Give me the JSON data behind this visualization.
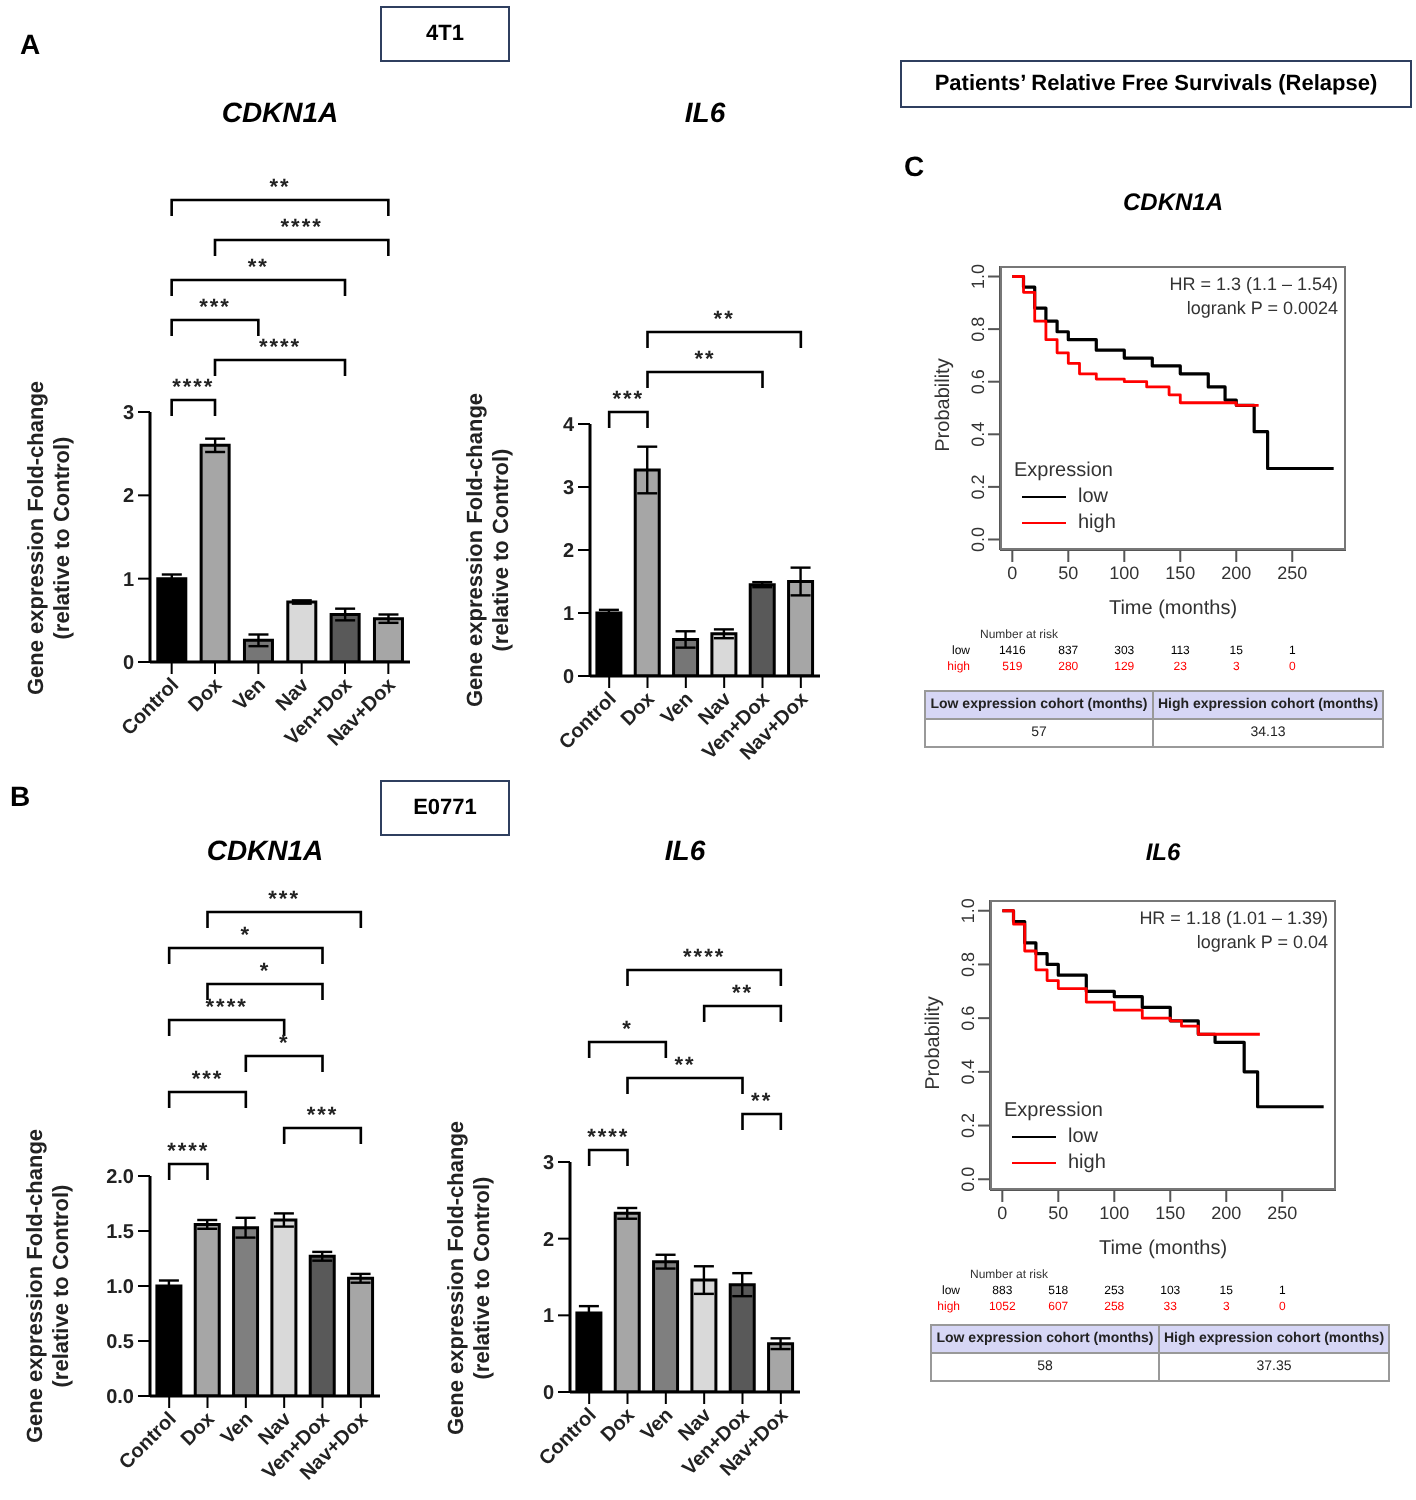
{
  "chart_data": [
    {
      "type": "bar",
      "title": "CDKN1A",
      "ylabel": "Gene expression Fold-change (relative to Control)",
      "categories": [
        "Control",
        "Dox",
        "Ven",
        "Nav",
        "Ven+Dox",
        "Nav+Dox"
      ],
      "values": [
        1.0,
        2.6,
        0.26,
        0.72,
        0.57,
        0.52
      ],
      "errors": [
        0.05,
        0.08,
        0.07,
        0.02,
        0.07,
        0.05
      ],
      "colors": [
        "#000000",
        "#a6a6a6",
        "#767676",
        "#d9d9d9",
        "#595959",
        "#a6a6a6"
      ],
      "ylim": [
        0,
        3
      ],
      "yticks": [
        0,
        1,
        2,
        3
      ],
      "annotations": [
        "A",
        "4T1",
        "**",
        "****",
        "**",
        "***",
        "****",
        "****"
      ]
    },
    {
      "type": "bar",
      "title": "IL6",
      "ylabel": "Gene expression Fold-change (relative to Control)",
      "categories": [
        "Control",
        "Dox",
        "Ven",
        "Nav",
        "Ven+Dox",
        "Nav+Dox"
      ],
      "values": [
        1.0,
        3.27,
        0.58,
        0.67,
        1.45,
        1.5
      ],
      "errors": [
        0.05,
        0.37,
        0.13,
        0.07,
        0.04,
        0.22
      ],
      "colors": [
        "#000000",
        "#a6a6a6",
        "#767676",
        "#d9d9d9",
        "#595959",
        "#a6a6a6"
      ],
      "ylim": [
        0,
        4
      ],
      "yticks": [
        0,
        1,
        2,
        3,
        4
      ],
      "annotations": [
        "**",
        "***",
        "**"
      ]
    },
    {
      "type": "bar",
      "title": "CDKN1A",
      "ylabel": "Gene expression Fold-change (relative to Control)",
      "categories": [
        "Control",
        "Dox",
        "Ven",
        "Nav",
        "Ven+Dox",
        "Nav+Dox"
      ],
      "values": [
        1.0,
        1.56,
        1.53,
        1.6,
        1.27,
        1.07
      ],
      "errors": [
        0.05,
        0.04,
        0.09,
        0.06,
        0.04,
        0.04
      ],
      "colors": [
        "#000000",
        "#a6a6a6",
        "#7f7f7f",
        "#d9d9d9",
        "#595959",
        "#a6a6a6"
      ],
      "ylim": [
        0,
        2
      ],
      "yticks": [
        {
          "value": 0,
          "label": "0.0"
        },
        {
          "value": 0.5,
          "label": "0.5"
        },
        {
          "value": 1,
          "label": "1.0"
        },
        {
          "value": 1.5,
          "label": "1.5"
        },
        {
          "value": 2,
          "label": "2.0"
        }
      ],
      "annotations": [
        "B",
        "E0771",
        "***",
        "*",
        "*",
        "****",
        "***",
        "*",
        "****",
        "***"
      ]
    },
    {
      "type": "bar",
      "title": "IL6",
      "ylabel": "Gene expression Fold-change (relative to Control)",
      "categories": [
        "Control",
        "Dox",
        "Ven",
        "Nav",
        "Ven+Dox",
        "Nav+Dox"
      ],
      "values": [
        1.03,
        2.33,
        1.7,
        1.46,
        1.4,
        0.63
      ],
      "errors": [
        0.09,
        0.07,
        0.09,
        0.18,
        0.15,
        0.07
      ],
      "colors": [
        "#000000",
        "#a6a6a6",
        "#7f7f7f",
        "#d9d9d9",
        "#595959",
        "#a6a6a6"
      ],
      "ylim": [
        0,
        3
      ],
      "yticks": [
        0,
        1,
        2,
        3
      ],
      "annotations": [
        "****",
        "*",
        "**",
        "****",
        "**",
        "**"
      ]
    },
    {
      "type": "step",
      "title": "CDKN1A",
      "xlabel": "Time (months)",
      "ylabel": "Probability",
      "xlim": [
        -11,
        298
      ],
      "ylim": [
        -0.04,
        1.04
      ],
      "xticks": [
        0,
        50,
        100,
        150,
        200,
        250
      ],
      "yticks": [
        {
          "value": 0,
          "label": "0.0"
        },
        {
          "value": 0.2,
          "label": "0.2"
        },
        {
          "value": 0.4,
          "label": "0.4"
        },
        {
          "value": 0.6,
          "label": "0.6"
        },
        {
          "value": 0.8,
          "label": "0.8"
        },
        {
          "value": 1,
          "label": "1.0"
        }
      ],
      "legend": "bottom left",
      "legend_title": "Expression",
      "series": [
        {
          "name": "low",
          "color": "#000000",
          "x": [
            0,
            10,
            20,
            30,
            40,
            50,
            75,
            100,
            125,
            150,
            175,
            190,
            200,
            216,
            228,
            287
          ],
          "values": [
            1.0,
            0.96,
            0.88,
            0.83,
            0.79,
            0.76,
            0.72,
            0.69,
            0.66,
            0.63,
            0.58,
            0.53,
            0.51,
            0.41,
            0.27,
            0.27
          ]
        },
        {
          "name": "high",
          "color": "#ff0000",
          "x": [
            0,
            10,
            20,
            30,
            40,
            50,
            60,
            75,
            100,
            120,
            140,
            150,
            175,
            200,
            220
          ],
          "values": [
            1.0,
            0.94,
            0.83,
            0.76,
            0.71,
            0.67,
            0.63,
            0.61,
            0.6,
            0.58,
            0.55,
            0.52,
            0.52,
            0.51,
            0.51
          ]
        }
      ],
      "annotations": [
        "Patients’ Relative Free Survivals (Relapse)",
        "C",
        "HR = 1.3 (1.1 – 1.54)",
        "logrank P = 0.0024",
        "Number at risk",
        "low",
        "1416",
        "837",
        "303",
        "113",
        "15",
        "1",
        "high",
        "519",
        "280",
        "129",
        "23",
        "3",
        "0",
        "Low expression cohort (months)",
        "High expression cohort (months)",
        "57",
        "34.13"
      ]
    },
    {
      "type": "step",
      "title": "IL6",
      "xlabel": "Time (months)",
      "ylabel": "Probability",
      "xlim": [
        -11,
        298
      ],
      "ylim": [
        -0.04,
        1.04
      ],
      "xticks": [
        0,
        50,
        100,
        150,
        200,
        250
      ],
      "yticks": [
        {
          "value": 0,
          "label": "0.0"
        },
        {
          "value": 0.2,
          "label": "0.2"
        },
        {
          "value": 0.4,
          "label": "0.4"
        },
        {
          "value": 0.6,
          "label": "0.6"
        },
        {
          "value": 0.8,
          "label": "0.8"
        },
        {
          "value": 1,
          "label": "1.0"
        }
      ],
      "legend": "bottom left",
      "legend_title": "Expression",
      "series": [
        {
          "name": "low",
          "color": "#000000",
          "x": [
            0,
            10,
            20,
            30,
            40,
            50,
            75,
            100,
            125,
            150,
            175,
            190,
            216,
            228,
            287
          ],
          "values": [
            1.0,
            0.96,
            0.88,
            0.84,
            0.8,
            0.76,
            0.7,
            0.68,
            0.64,
            0.59,
            0.54,
            0.51,
            0.4,
            0.27,
            0.27
          ]
        },
        {
          "name": "high",
          "color": "#ff0000",
          "x": [
            0,
            10,
            20,
            30,
            40,
            50,
            75,
            100,
            125,
            150,
            160,
            175,
            230
          ],
          "values": [
            1.0,
            0.95,
            0.85,
            0.78,
            0.74,
            0.71,
            0.66,
            0.63,
            0.6,
            0.59,
            0.57,
            0.54,
            0.54
          ]
        }
      ],
      "annotations": [
        "HR = 1.18 (1.01 – 1.39)",
        "logrank P = 0.04",
        "Number at risk",
        "low",
        "883",
        "518",
        "253",
        "103",
        "15",
        "1",
        "high",
        "1052",
        "607",
        "258",
        "33",
        "3",
        "0",
        "Low expression cohort (months)",
        "High expression cohort (months)",
        "58",
        "37.35"
      ]
    }
  ]
}
